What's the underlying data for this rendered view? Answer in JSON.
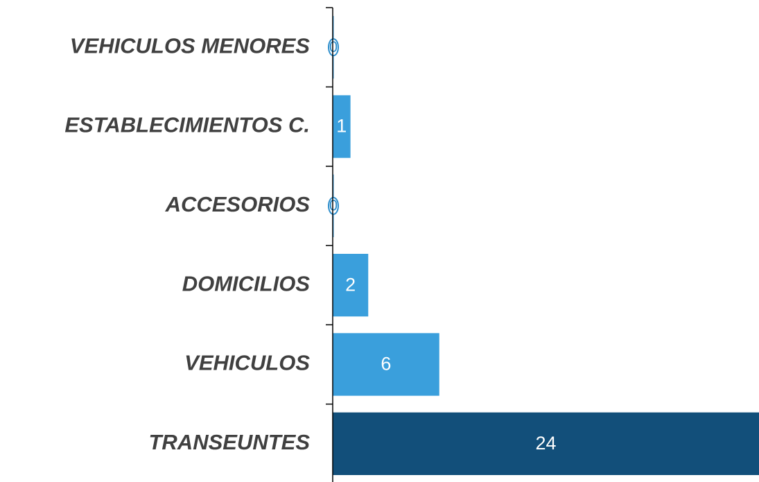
{
  "chart_data": {
    "type": "bar",
    "orientation": "horizontal",
    "categories": [
      "VEHICULOS MENORES",
      "ESTABLECIMIENTOS C.",
      "ACCESORIOS",
      "DOMICILIOS",
      "VEHICULOS",
      "TRANSEUNTES"
    ],
    "values": [
      0,
      1,
      0,
      2,
      6,
      24
    ],
    "colors": [
      "#3a9fdc",
      "#3a9fdc",
      "#3a9fdc",
      "#3a9fdc",
      "#3a9fdc",
      "#124f7a"
    ],
    "xlim": [
      0,
      24
    ]
  }
}
